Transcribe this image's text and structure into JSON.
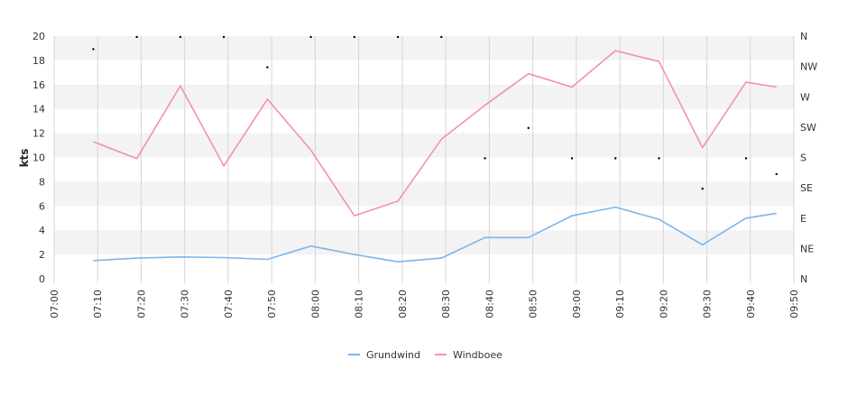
{
  "chart_data": {
    "type": "line",
    "title": "",
    "ylabel": "kts",
    "y2label": "",
    "ylim": [
      0,
      20
    ],
    "y_ticks": [
      "0",
      "2",
      "4",
      "6",
      "8",
      "10",
      "12",
      "14",
      "16",
      "18",
      "20"
    ],
    "y2_ticks": [
      "N",
      "NE",
      "E",
      "SE",
      "S",
      "SW",
      "W",
      "NW",
      "N"
    ],
    "x_ticks": [
      "07:00",
      "07:10",
      "07:20",
      "07:30",
      "07:40",
      "07:50",
      "08:00",
      "08:10",
      "08:20",
      "08:30",
      "08:40",
      "08:50",
      "09:00",
      "09:10",
      "09:20",
      "09:30",
      "09:40",
      "09:50"
    ],
    "x": [
      "07:09",
      "07:19",
      "07:29",
      "07:39",
      "07:49",
      "07:59",
      "08:09",
      "08:19",
      "08:29",
      "08:39",
      "08:49",
      "08:59",
      "09:09",
      "09:19",
      "09:29",
      "09:39",
      "09:46"
    ],
    "series": [
      {
        "name": "Grundwind",
        "color": "#7cb5ec",
        "values": [
          1.5,
          1.7,
          1.8,
          1.75,
          1.6,
          2.7,
          2.0,
          1.4,
          1.7,
          3.4,
          3.4,
          5.2,
          5.9,
          4.9,
          2.8,
          5.0,
          5.4
        ]
      },
      {
        "name": "Windboee",
        "color": "#f48fb1",
        "values": [
          11.3,
          9.9,
          15.9,
          9.3,
          14.8,
          10.6,
          5.2,
          6.4,
          11.5,
          14.3,
          16.9,
          15.8,
          18.8,
          17.9,
          10.8,
          16.2,
          15.8
        ]
      }
    ],
    "direction": {
      "label": "",
      "values": [
        19.0,
        20,
        20,
        20,
        17.5,
        20,
        20,
        20,
        20,
        10,
        12.5,
        10,
        10,
        10,
        7.5,
        10,
        8.7
      ]
    },
    "grid": true,
    "legend_position": "bottom-center"
  }
}
